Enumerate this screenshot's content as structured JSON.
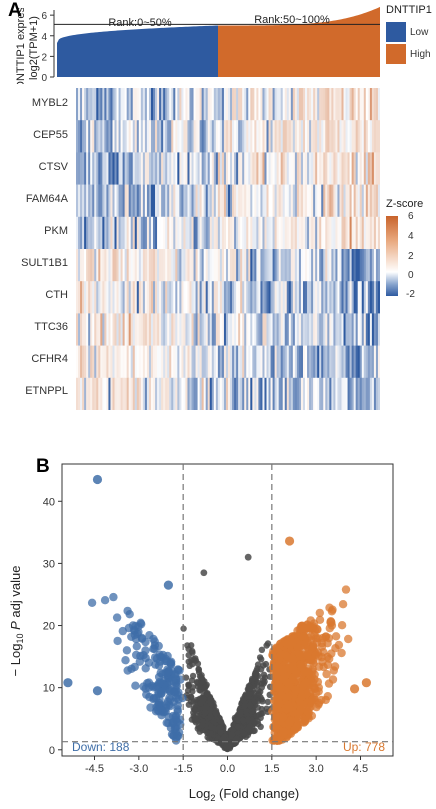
{
  "panel_a": {
    "letter": "A",
    "bar_ylabel_1": "DNTTIP1 expres",
    "bar_ylabel_2": "log2(TPM+1)",
    "bar_yticks": [
      "6",
      "4",
      "2",
      "0"
    ],
    "rank_low": "Rank:0~50%",
    "rank_high": "Rank:50~100%",
    "group_legend": {
      "title": "DNTTIP1",
      "items": [
        {
          "label": "Low",
          "color": "#2e5aa0"
        },
        {
          "label": "High",
          "color": "#d16a2b"
        }
      ]
    },
    "genes": [
      "MYBL2",
      "CEP55",
      "CTSV",
      "FAM64A",
      "PKM",
      "SULT1B1",
      "CTH",
      "TTC36",
      "CFHR4",
      "ETNPPL"
    ],
    "zscore_legend": {
      "title": "Z-score",
      "ticks": [
        "6",
        "4",
        "2",
        "0",
        "-2"
      ],
      "colors": {
        "high": "#c8632b",
        "mid": "#ffffff",
        "low": "#2e5aa0"
      }
    }
  },
  "panel_b": {
    "letter": "B",
    "down_label": "Down: 188",
    "up_label": "Up: 778",
    "colors": {
      "down": "#3f6ea8",
      "ns": "#4a4a4a",
      "up": "#d9782f"
    }
  },
  "chart_data": [
    {
      "type": "bar",
      "description_ref": "DNTTIP1 expression sorted across samples",
      "ylabel": "DNTTIP1 expres log2(TPM+1)",
      "ylim": [
        0,
        6.5
      ],
      "groups": [
        {
          "name": "Low",
          "rank": "Rank:0~50%",
          "value_start": 3.3,
          "value_end": 5.0
        },
        {
          "name": "High",
          "rank": "Rank:50~100%",
          "value_start": 5.0,
          "value_end": 6.8
        }
      ],
      "median_line": 5.1
    },
    {
      "type": "heatmap",
      "rows": [
        "MYBL2",
        "CEP55",
        "CTSV",
        "FAM64A",
        "PKM",
        "SULT1B1",
        "CTH",
        "TTC36",
        "CFHR4",
        "ETNPPL"
      ],
      "zlim": [
        -2,
        6
      ],
      "trend": "upper 5 genes increase with DNTTIP1 rank; lower 5 genes decrease"
    },
    {
      "type": "scatter",
      "xlabel": "Log2 (Fold change)",
      "ylabel": "− Log10 P adj value",
      "xticks": [
        "-4.5",
        "-3.0",
        "-1.5",
        "0.0",
        "1.5",
        "3.0",
        "4.5"
      ],
      "yticks": [
        "0",
        "10",
        "20",
        "30",
        "40"
      ],
      "xlim": [
        -5.6,
        5.6
      ],
      "ylim": [
        -1,
        46
      ],
      "thresholds": {
        "x": [
          -1.5,
          1.5
        ],
        "y": 1.3
      },
      "highlight_points": [
        {
          "x": -4.4,
          "y": 43.5,
          "group": "down"
        },
        {
          "x": -2.0,
          "y": 26.5,
          "group": "down"
        },
        {
          "x": -5.4,
          "y": 10.8,
          "group": "down"
        },
        {
          "x": -4.4,
          "y": 9.5,
          "group": "down"
        },
        {
          "x": 2.1,
          "y": 33.6,
          "group": "up"
        },
        {
          "x": 4.7,
          "y": 10.8,
          "group": "up"
        },
        {
          "x": 4.3,
          "y": 9.8,
          "group": "up"
        },
        {
          "x": 3.5,
          "y": 20.5,
          "group": "up"
        },
        {
          "x": -0.8,
          "y": 28.5,
          "group": "ns"
        },
        {
          "x": 0.7,
          "y": 31.0,
          "group": "ns"
        }
      ],
      "counts": {
        "down": 188,
        "up": 778
      }
    }
  ]
}
